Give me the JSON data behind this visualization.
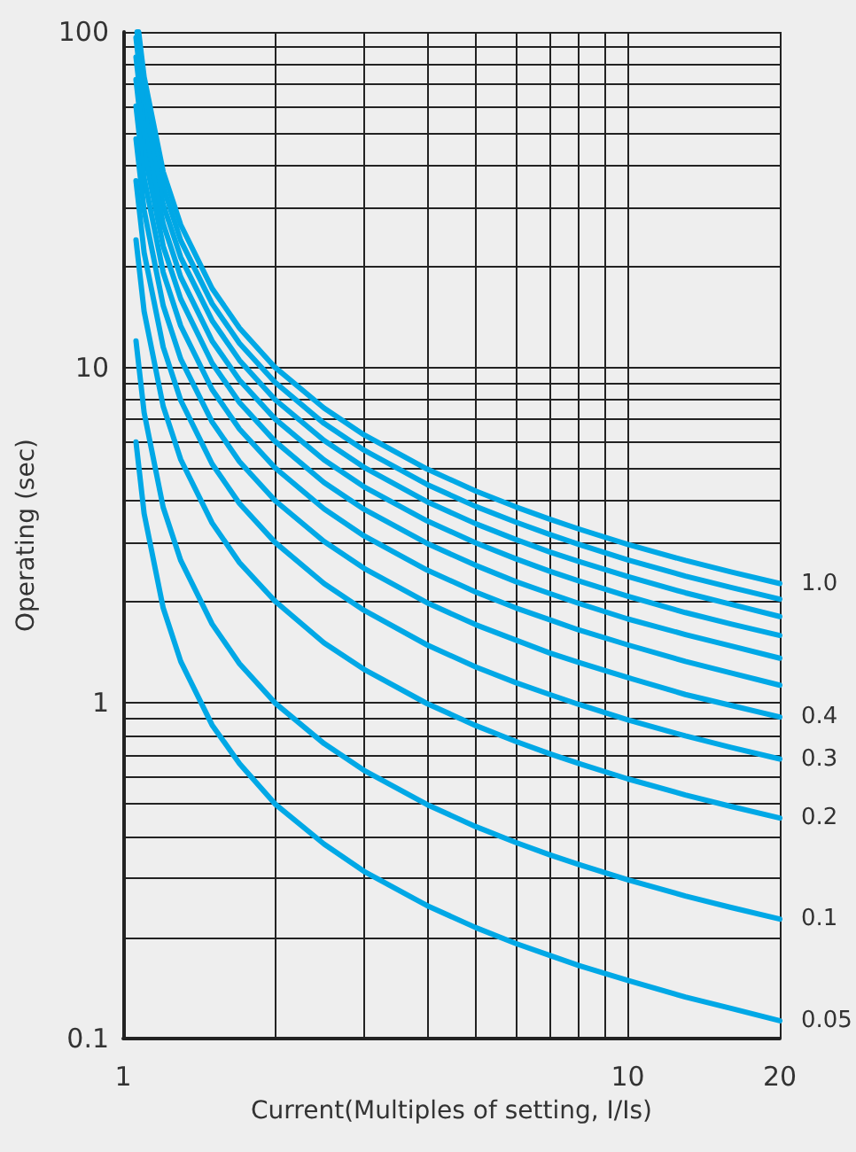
{
  "chart_data": {
    "type": "line",
    "xlabel": "Current(Multiples of setting, I/Is)",
    "ylabel": "Operating (sec)",
    "log": "xy",
    "grid": true,
    "legend": false,
    "marker": "none",
    "line_style": "solid",
    "xlim": [
      1,
      20
    ],
    "ylim": [
      0.1,
      100
    ],
    "xticks": [
      1,
      {
        "value": 2,
        "label": null
      },
      {
        "value": 3,
        "label": null
      },
      {
        "value": 4,
        "label": null
      },
      {
        "value": 5,
        "label": null
      },
      {
        "value": 6,
        "label": null
      },
      {
        "value": 7,
        "label": null
      },
      {
        "value": 8,
        "label": null
      },
      {
        "value": 9,
        "label": null
      },
      10,
      20
    ],
    "yticks": [
      0.1,
      {
        "value": 0.2,
        "label": null
      },
      {
        "value": 0.3,
        "label": null
      },
      {
        "value": 0.4,
        "label": null
      },
      {
        "value": 0.5,
        "label": null
      },
      {
        "value": 0.6,
        "label": null
      },
      {
        "value": 0.7,
        "label": null
      },
      {
        "value": 0.8,
        "label": null
      },
      {
        "value": 0.9,
        "label": null
      },
      1,
      {
        "value": 2,
        "label": null
      },
      {
        "value": 3,
        "label": null
      },
      {
        "value": 4,
        "label": null
      },
      {
        "value": 5,
        "label": null
      },
      {
        "value": 6,
        "label": null
      },
      {
        "value": 7,
        "label": null
      },
      {
        "value": 8,
        "label": null
      },
      {
        "value": 9,
        "label": null
      },
      10,
      {
        "value": 20,
        "label": null
      },
      {
        "value": 30,
        "label": null
      },
      {
        "value": 40,
        "label": null
      },
      {
        "value": 50,
        "label": null
      },
      {
        "value": 60,
        "label": null
      },
      {
        "value": 70,
        "label": null
      },
      {
        "value": 80,
        "label": null
      },
      {
        "value": 90,
        "label": null
      },
      100
    ],
    "x": [
      1.06,
      1.1,
      1.2,
      1.3,
      1.5,
      1.7,
      2,
      2.5,
      3,
      4,
      5,
      6,
      7,
      8,
      10,
      13,
      16,
      20
    ],
    "series": [
      {
        "name": "1.0",
        "color": "#00a8e6",
        "x": [
          1.073,
          1.1,
          1.2,
          1.3,
          1.5,
          1.7,
          2,
          2.5,
          3,
          4,
          5,
          6,
          7,
          8,
          10,
          13,
          16,
          20
        ],
        "values": [
          100,
          73.4,
          38.3,
          26.6,
          17.2,
          13.1,
          10.0,
          7.57,
          6.3,
          4.98,
          4.28,
          3.84,
          3.53,
          3.3,
          2.97,
          2.66,
          2.46,
          2.27
        ]
      },
      {
        "color": "#00a8e6",
        "x": [
          1.065,
          1.1,
          1.2,
          1.3,
          1.5,
          1.7,
          2,
          2.5,
          3,
          4,
          5,
          6,
          7,
          8,
          10,
          13,
          16,
          20
        ],
        "values": [
          100,
          66.0,
          34.5,
          23.9,
          15.5,
          11.8,
          9.03,
          6.81,
          5.67,
          4.48,
          3.85,
          3.46,
          3.18,
          2.97,
          2.67,
          2.39,
          2.21,
          2.04
        ]
      },
      {
        "color": "#00a8e6",
        "values": [
          96.1,
          58.7,
          30.6,
          21.3,
          13.8,
          10.5,
          8.02,
          6.06,
          5.04,
          3.98,
          3.42,
          3.07,
          2.82,
          2.64,
          2.38,
          2.13,
          1.97,
          1.81
        ]
      },
      {
        "color": "#00a8e6",
        "values": [
          84.1,
          51.4,
          26.8,
          18.6,
          12.0,
          9.17,
          7.02,
          5.3,
          4.41,
          3.49,
          3.0,
          2.69,
          2.47,
          2.31,
          2.08,
          1.86,
          1.72,
          1.59
        ]
      },
      {
        "color": "#00a8e6",
        "values": [
          72.1,
          44.0,
          23.0,
          16.0,
          10.3,
          7.86,
          6.02,
          4.54,
          3.78,
          2.99,
          2.57,
          2.3,
          2.12,
          1.98,
          1.78,
          1.6,
          1.48,
          1.36
        ]
      },
      {
        "color": "#00a8e6",
        "values": [
          60.1,
          36.7,
          19.2,
          13.3,
          8.6,
          6.55,
          5.02,
          3.79,
          3.15,
          2.49,
          2.14,
          1.92,
          1.77,
          1.65,
          1.49,
          1.33,
          1.23,
          1.13
        ]
      },
      {
        "name": "0.4",
        "color": "#00a8e6",
        "values": [
          48.0,
          29.4,
          15.3,
          10.6,
          6.88,
          5.24,
          4.01,
          3.03,
          2.52,
          1.99,
          1.71,
          1.54,
          1.41,
          1.32,
          1.19,
          1.06,
          0.984,
          0.908
        ]
      },
      {
        "name": "0.3",
        "color": "#00a8e6",
        "values": [
          36.0,
          22.0,
          11.5,
          7.98,
          5.16,
          3.93,
          3.01,
          2.27,
          1.89,
          1.49,
          1.28,
          1.15,
          1.06,
          0.99,
          0.891,
          0.798,
          0.738,
          0.681
        ]
      },
      {
        "name": "0.2",
        "color": "#00a8e6",
        "values": [
          24.0,
          14.7,
          7.66,
          5.32,
          3.44,
          2.62,
          2.01,
          1.51,
          1.26,
          0.996,
          0.856,
          0.768,
          0.706,
          0.66,
          0.594,
          0.532,
          0.492,
          0.454
        ]
      },
      {
        "name": "0.1",
        "color": "#00a8e6",
        "values": [
          12.0,
          7.34,
          3.83,
          2.66,
          1.72,
          1.31,
          1.0,
          0.757,
          0.63,
          0.498,
          0.428,
          0.384,
          0.353,
          0.33,
          0.297,
          0.266,
          0.246,
          0.227
        ]
      },
      {
        "name": "0.05",
        "color": "#00a8e6",
        "values": [
          6.0,
          3.67,
          1.92,
          1.33,
          0.86,
          0.66,
          0.5,
          0.38,
          0.315,
          0.249,
          0.214,
          0.192,
          0.177,
          0.165,
          0.149,
          0.133,
          0.123,
          0.113
        ]
      }
    ]
  }
}
